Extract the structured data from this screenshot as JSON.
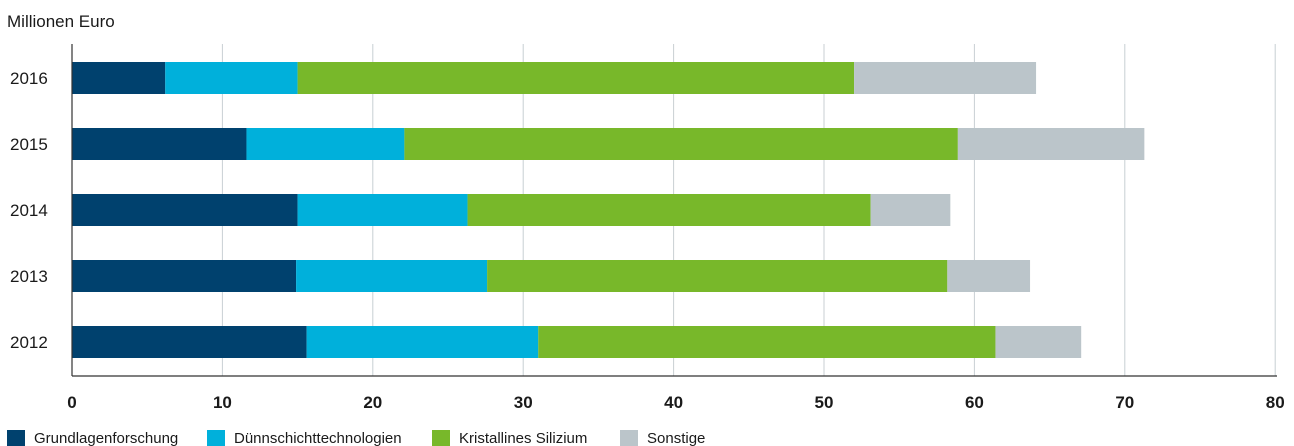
{
  "chart_data": {
    "type": "bar",
    "orientation": "horizontal",
    "stacked": true,
    "unit_label": "Millionen Euro",
    "categories": [
      "2016",
      "2015",
      "2014",
      "2013",
      "2012"
    ],
    "series": [
      {
        "name": "Grundlagenforschung",
        "color": "#00416e",
        "values": [
          6.2,
          11.6,
          15.0,
          14.9,
          15.6
        ]
      },
      {
        "name": "Dünnschichttechnologien",
        "color": "#00b0db",
        "values": [
          8.8,
          10.5,
          11.3,
          12.7,
          15.4
        ]
      },
      {
        "name": "Kristallines Silizium",
        "color": "#78b82a",
        "values": [
          37.0,
          36.8,
          26.8,
          30.6,
          30.4
        ]
      },
      {
        "name": "Sonstige",
        "color": "#bbc5ca",
        "values": [
          12.1,
          12.4,
          5.3,
          5.5,
          5.7
        ]
      }
    ],
    "x_ticks": [
      "0",
      "10",
      "20",
      "30",
      "40",
      "50",
      "60",
      "70",
      "80"
    ],
    "xlim": [
      0,
      80
    ],
    "grid": "vertical",
    "legend_position": "bottom-left"
  }
}
